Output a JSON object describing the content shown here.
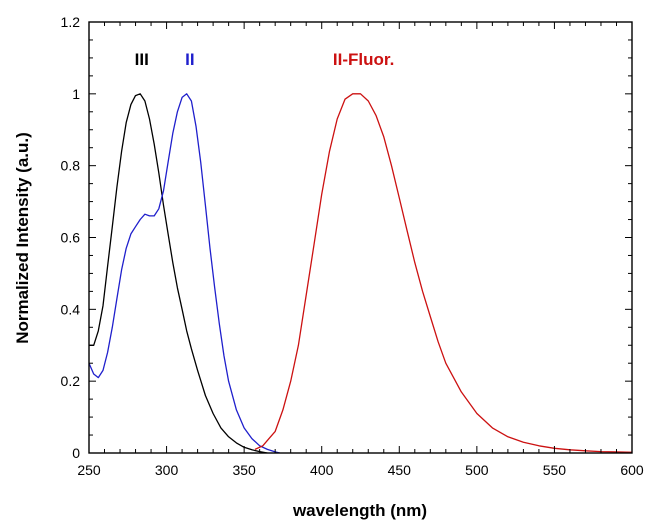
{
  "chart_data": {
    "type": "line",
    "title": "",
    "xlabel": "wavelength (nm)",
    "ylabel": "Normalized Intensity (a.u.)",
    "xlim": [
      250,
      600
    ],
    "ylim": [
      0,
      1.2
    ],
    "x_ticks": [
      250,
      300,
      350,
      400,
      450,
      500,
      550,
      600
    ],
    "y_ticks": [
      0,
      0.2,
      0.4,
      0.6,
      0.8,
      1,
      1.2
    ],
    "grid": false,
    "legend": "inline labels above peaks",
    "series": [
      {
        "name": "III",
        "color": "#000000",
        "x": [
          250,
          253,
          256,
          259,
          262,
          265,
          268,
          271,
          274,
          277,
          280,
          283,
          286,
          289,
          292,
          295,
          298,
          301,
          304,
          307,
          310,
          313,
          316,
          320,
          325,
          330,
          335,
          340,
          345,
          350,
          355,
          360,
          365
        ],
        "y": [
          0.3,
          0.3,
          0.34,
          0.41,
          0.52,
          0.63,
          0.74,
          0.84,
          0.92,
          0.97,
          0.995,
          1.0,
          0.98,
          0.93,
          0.86,
          0.78,
          0.69,
          0.61,
          0.53,
          0.46,
          0.4,
          0.34,
          0.29,
          0.23,
          0.16,
          0.11,
          0.07,
          0.045,
          0.028,
          0.016,
          0.009,
          0.004,
          0.0
        ]
      },
      {
        "name": "II",
        "color": "#1f1fcc",
        "x": [
          250,
          253,
          256,
          259,
          262,
          265,
          268,
          271,
          274,
          277,
          280,
          283,
          286,
          289,
          292,
          295,
          298,
          301,
          304,
          307,
          310,
          313,
          316,
          319,
          322,
          325,
          328,
          331,
          334,
          337,
          340,
          345,
          350,
          355,
          360,
          365,
          370,
          373
        ],
        "y": [
          0.25,
          0.22,
          0.21,
          0.23,
          0.28,
          0.35,
          0.43,
          0.51,
          0.57,
          0.61,
          0.63,
          0.65,
          0.665,
          0.66,
          0.66,
          0.68,
          0.73,
          0.81,
          0.89,
          0.95,
          0.99,
          1.0,
          0.98,
          0.91,
          0.81,
          0.69,
          0.57,
          0.46,
          0.36,
          0.27,
          0.2,
          0.12,
          0.07,
          0.04,
          0.02,
          0.01,
          0.003,
          0.0
        ]
      },
      {
        "name": "II-Fluor.",
        "color": "#cc1111",
        "x": [
          357,
          362,
          366,
          370,
          375,
          380,
          385,
          390,
          395,
          400,
          405,
          410,
          415,
          420,
          425,
          430,
          435,
          440,
          445,
          450,
          455,
          460,
          465,
          470,
          475,
          480,
          490,
          500,
          510,
          520,
          530,
          540,
          550,
          560,
          570,
          580,
          590,
          600
        ],
        "y": [
          0.01,
          0.02,
          0.04,
          0.06,
          0.12,
          0.2,
          0.3,
          0.44,
          0.58,
          0.72,
          0.84,
          0.93,
          0.985,
          1.0,
          1.0,
          0.98,
          0.94,
          0.88,
          0.8,
          0.71,
          0.62,
          0.53,
          0.45,
          0.38,
          0.31,
          0.25,
          0.17,
          0.11,
          0.07,
          0.045,
          0.03,
          0.02,
          0.013,
          0.009,
          0.006,
          0.004,
          0.003,
          0.002
        ]
      }
    ],
    "annotations": [
      {
        "text": "III",
        "x": 284,
        "y": 1.08,
        "color": "#000000"
      },
      {
        "text": "II",
        "x": 315,
        "y": 1.08,
        "color": "#1f1fcc"
      },
      {
        "text": "II-Fluor.",
        "x": 427,
        "y": 1.08,
        "color": "#cc1111"
      }
    ]
  }
}
